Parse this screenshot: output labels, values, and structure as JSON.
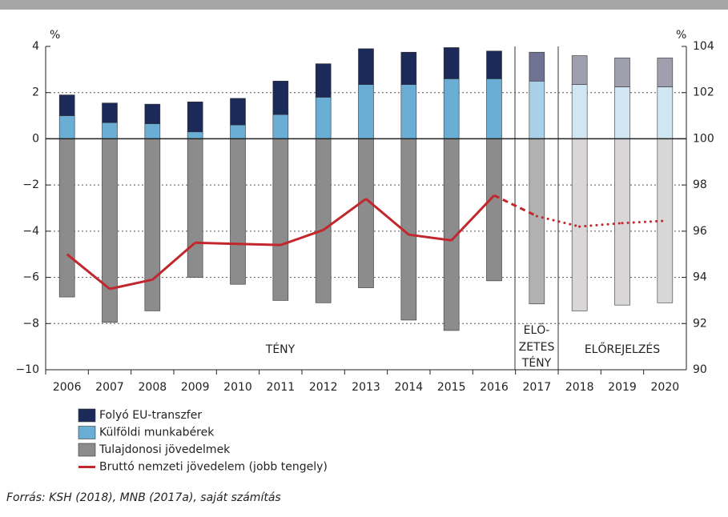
{
  "chart_data": {
    "type": "stacked-bar-line",
    "y_unit": "%",
    "y2_unit": "%",
    "categories": [
      "2006",
      "2007",
      "2008",
      "2009",
      "2010",
      "2011",
      "2012",
      "2013",
      "2014",
      "2015",
      "2016",
      "2017",
      "2018",
      "2019",
      "2020"
    ],
    "ylim": [
      -10,
      4
    ],
    "yticks": [
      {
        "value": -10,
        "label": "−10"
      },
      {
        "value": -8,
        "label": "−8"
      },
      {
        "value": -6,
        "label": "−6"
      },
      {
        "value": -4,
        "label": "−4"
      },
      {
        "value": -2,
        "label": "−2"
      },
      0,
      2,
      4
    ],
    "y2lim": [
      90,
      104
    ],
    "y2ticks": [
      90,
      92,
      94,
      96,
      98,
      100,
      102,
      104
    ],
    "grid": true,
    "series": [
      {
        "name": "Folyó EU-transzfer",
        "color": "#1b2a58",
        "colors": [
          "#1b2a58",
          "#1b2a58",
          "#1b2a58",
          "#1b2a58",
          "#1b2a58",
          "#1b2a58",
          "#1b2a58",
          "#1b2a58",
          "#1b2a58",
          "#1b2a58",
          "#1b2a58",
          "#6f7292",
          "#a09fae",
          "#a09fae",
          "#a09fae"
        ],
        "values": [
          0.9,
          0.85,
          0.85,
          1.3,
          1.15,
          1.45,
          1.45,
          1.55,
          1.4,
          1.35,
          1.2,
          1.25,
          1.25,
          1.25,
          1.25
        ]
      },
      {
        "name": "Külföldi munkabérek",
        "color": "#6aaed6",
        "colors": [
          "#6aaed6",
          "#6aaed6",
          "#6aaed6",
          "#6aaed6",
          "#6aaed6",
          "#6aaed6",
          "#6aaed6",
          "#6aaed6",
          "#6aaed6",
          "#6aaed6",
          "#6aaed6",
          "#a9d0e9",
          "#d1e6f3",
          "#d1e6f3",
          "#d1e6f3"
        ],
        "values": [
          1.0,
          0.7,
          0.65,
          0.3,
          0.6,
          1.05,
          1.8,
          2.35,
          2.35,
          2.6,
          2.6,
          2.5,
          2.35,
          2.25,
          2.25
        ]
      },
      {
        "name": "Tulajdonosi jövedelmek",
        "color": "#8c8c8c",
        "colors": [
          "#8c8c8c",
          "#8c8c8c",
          "#8c8c8c",
          "#8c8c8c",
          "#8c8c8c",
          "#8c8c8c",
          "#8c8c8c",
          "#8c8c8c",
          "#8c8c8c",
          "#8c8c8c",
          "#8c8c8c",
          "#b2b1b1",
          "#d8d6d6",
          "#d8d6d6",
          "#d8d6d6"
        ],
        "values": [
          -6.85,
          -7.95,
          -7.45,
          -6.0,
          -6.3,
          -7.0,
          -7.1,
          -6.45,
          -7.85,
          -8.3,
          -6.15,
          -7.15,
          -7.45,
          -7.2,
          -7.1
        ]
      },
      {
        "name": "Bruttó nemzeti jövedelem (jobb tengely)",
        "color": "#c1272d",
        "axis": "y2",
        "type": "line",
        "segment_styles": [
          "solid",
          "solid",
          "solid",
          "solid",
          "solid",
          "solid",
          "solid",
          "solid",
          "solid",
          "solid",
          "dashed",
          "dotted",
          "dotted",
          "dotted"
        ],
        "values": [
          95.0,
          93.5,
          93.9,
          95.5,
          95.45,
          95.4,
          96.05,
          97.4,
          95.85,
          95.6,
          97.55,
          96.65,
          96.2,
          96.35,
          96.45
        ]
      }
    ],
    "annotations": [
      "TÉNY",
      "ELŐ-",
      "ZETES",
      "TÉNY",
      "ELŐREJELZÉS"
    ],
    "source": "Forrás: KSH (2018), MNB (2017a), saját számítás"
  }
}
